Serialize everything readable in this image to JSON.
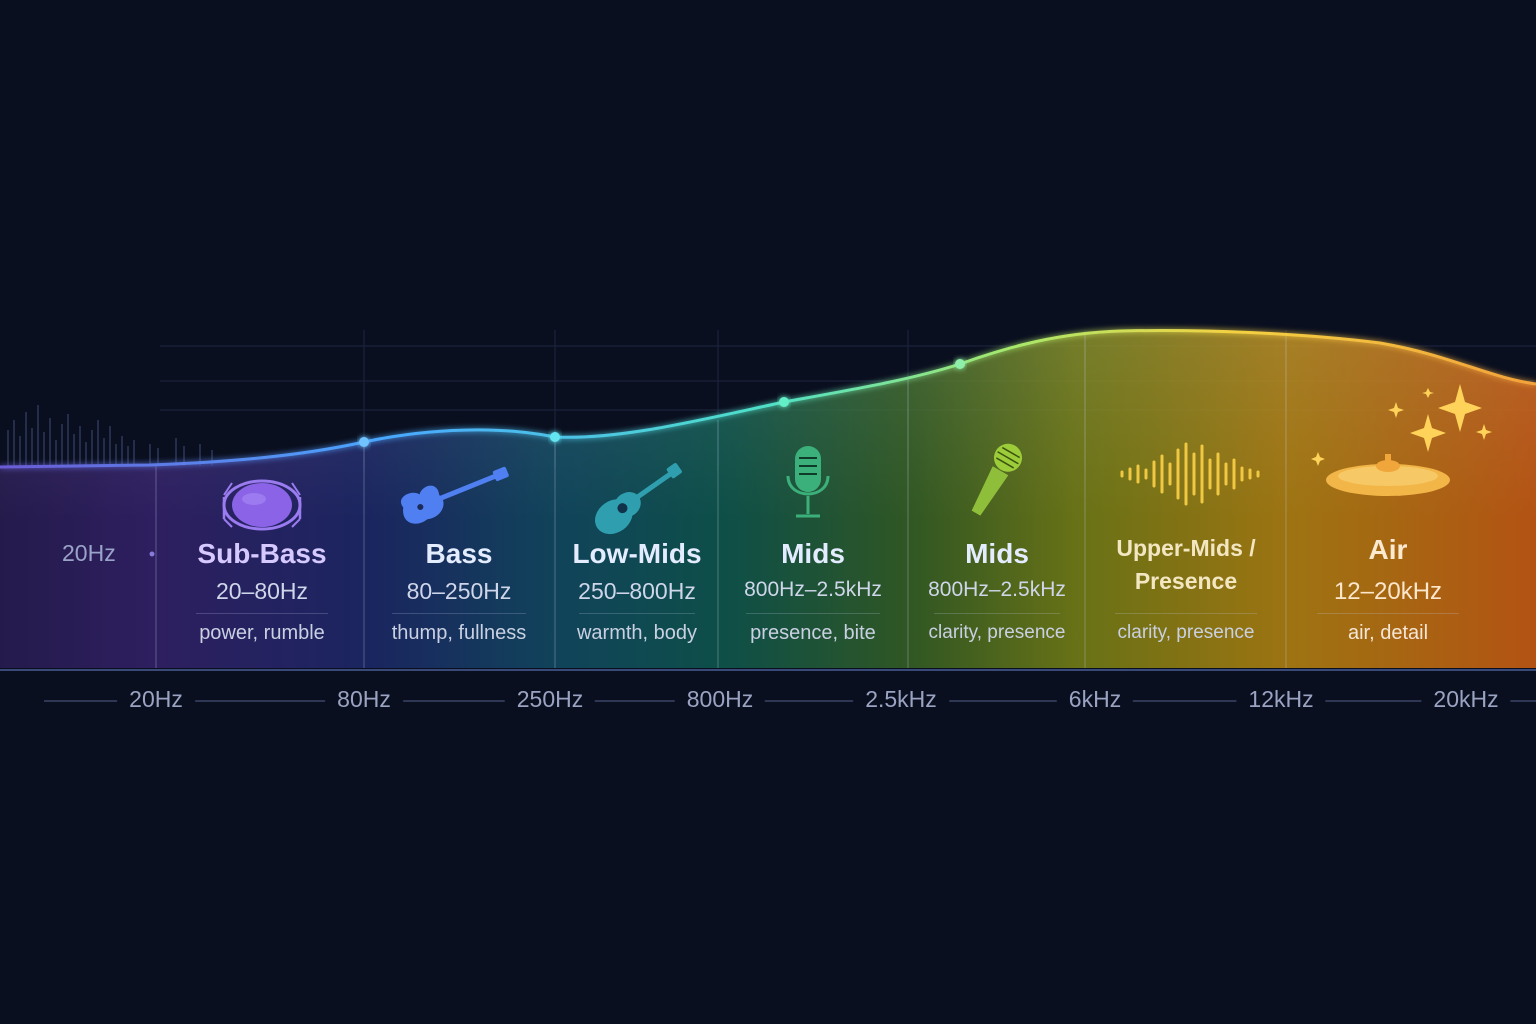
{
  "left_label": "20Hz",
  "bands": [
    {
      "name": "Sub-Bass",
      "range": "20–80Hz",
      "description": "power, rumble",
      "icon": "drum-icon",
      "color": "#8a63e6"
    },
    {
      "name": "Bass",
      "range": "80–250Hz",
      "description": "thump, fullness",
      "icon": "bass-guitar-icon",
      "color": "#4f6fd8"
    },
    {
      "name": "Low-Mids",
      "range": "250–800Hz",
      "description": "warmth, body",
      "icon": "acoustic-guitar-icon",
      "color": "#2f9fb0"
    },
    {
      "name": "Mids",
      "range": "800Hz–2.5kHz",
      "description": "presence, bite",
      "icon": "studio-microphone-icon",
      "color": "#3cb07a"
    },
    {
      "name": "Mids",
      "range": "800Hz–2.5kHz",
      "description": "clarity, presence",
      "icon": "handheld-microphone-icon",
      "color": "#8fbf3a"
    },
    {
      "name": "Upper-Mids / Presence",
      "range": "",
      "description": "clarity, presence",
      "icon": "waveform-icon",
      "color": "#d9b32a"
    },
    {
      "name": "Air",
      "range": "12–20kHz",
      "description": "air, detail",
      "icon": "cymbal-sparkle-icon",
      "color": "#e0902a"
    }
  ],
  "axis_ticks": [
    "20Hz",
    "80Hz",
    "250Hz",
    "800Hz",
    "2.5kHz",
    "6kHz",
    "12kHz",
    "20kHz"
  ]
}
